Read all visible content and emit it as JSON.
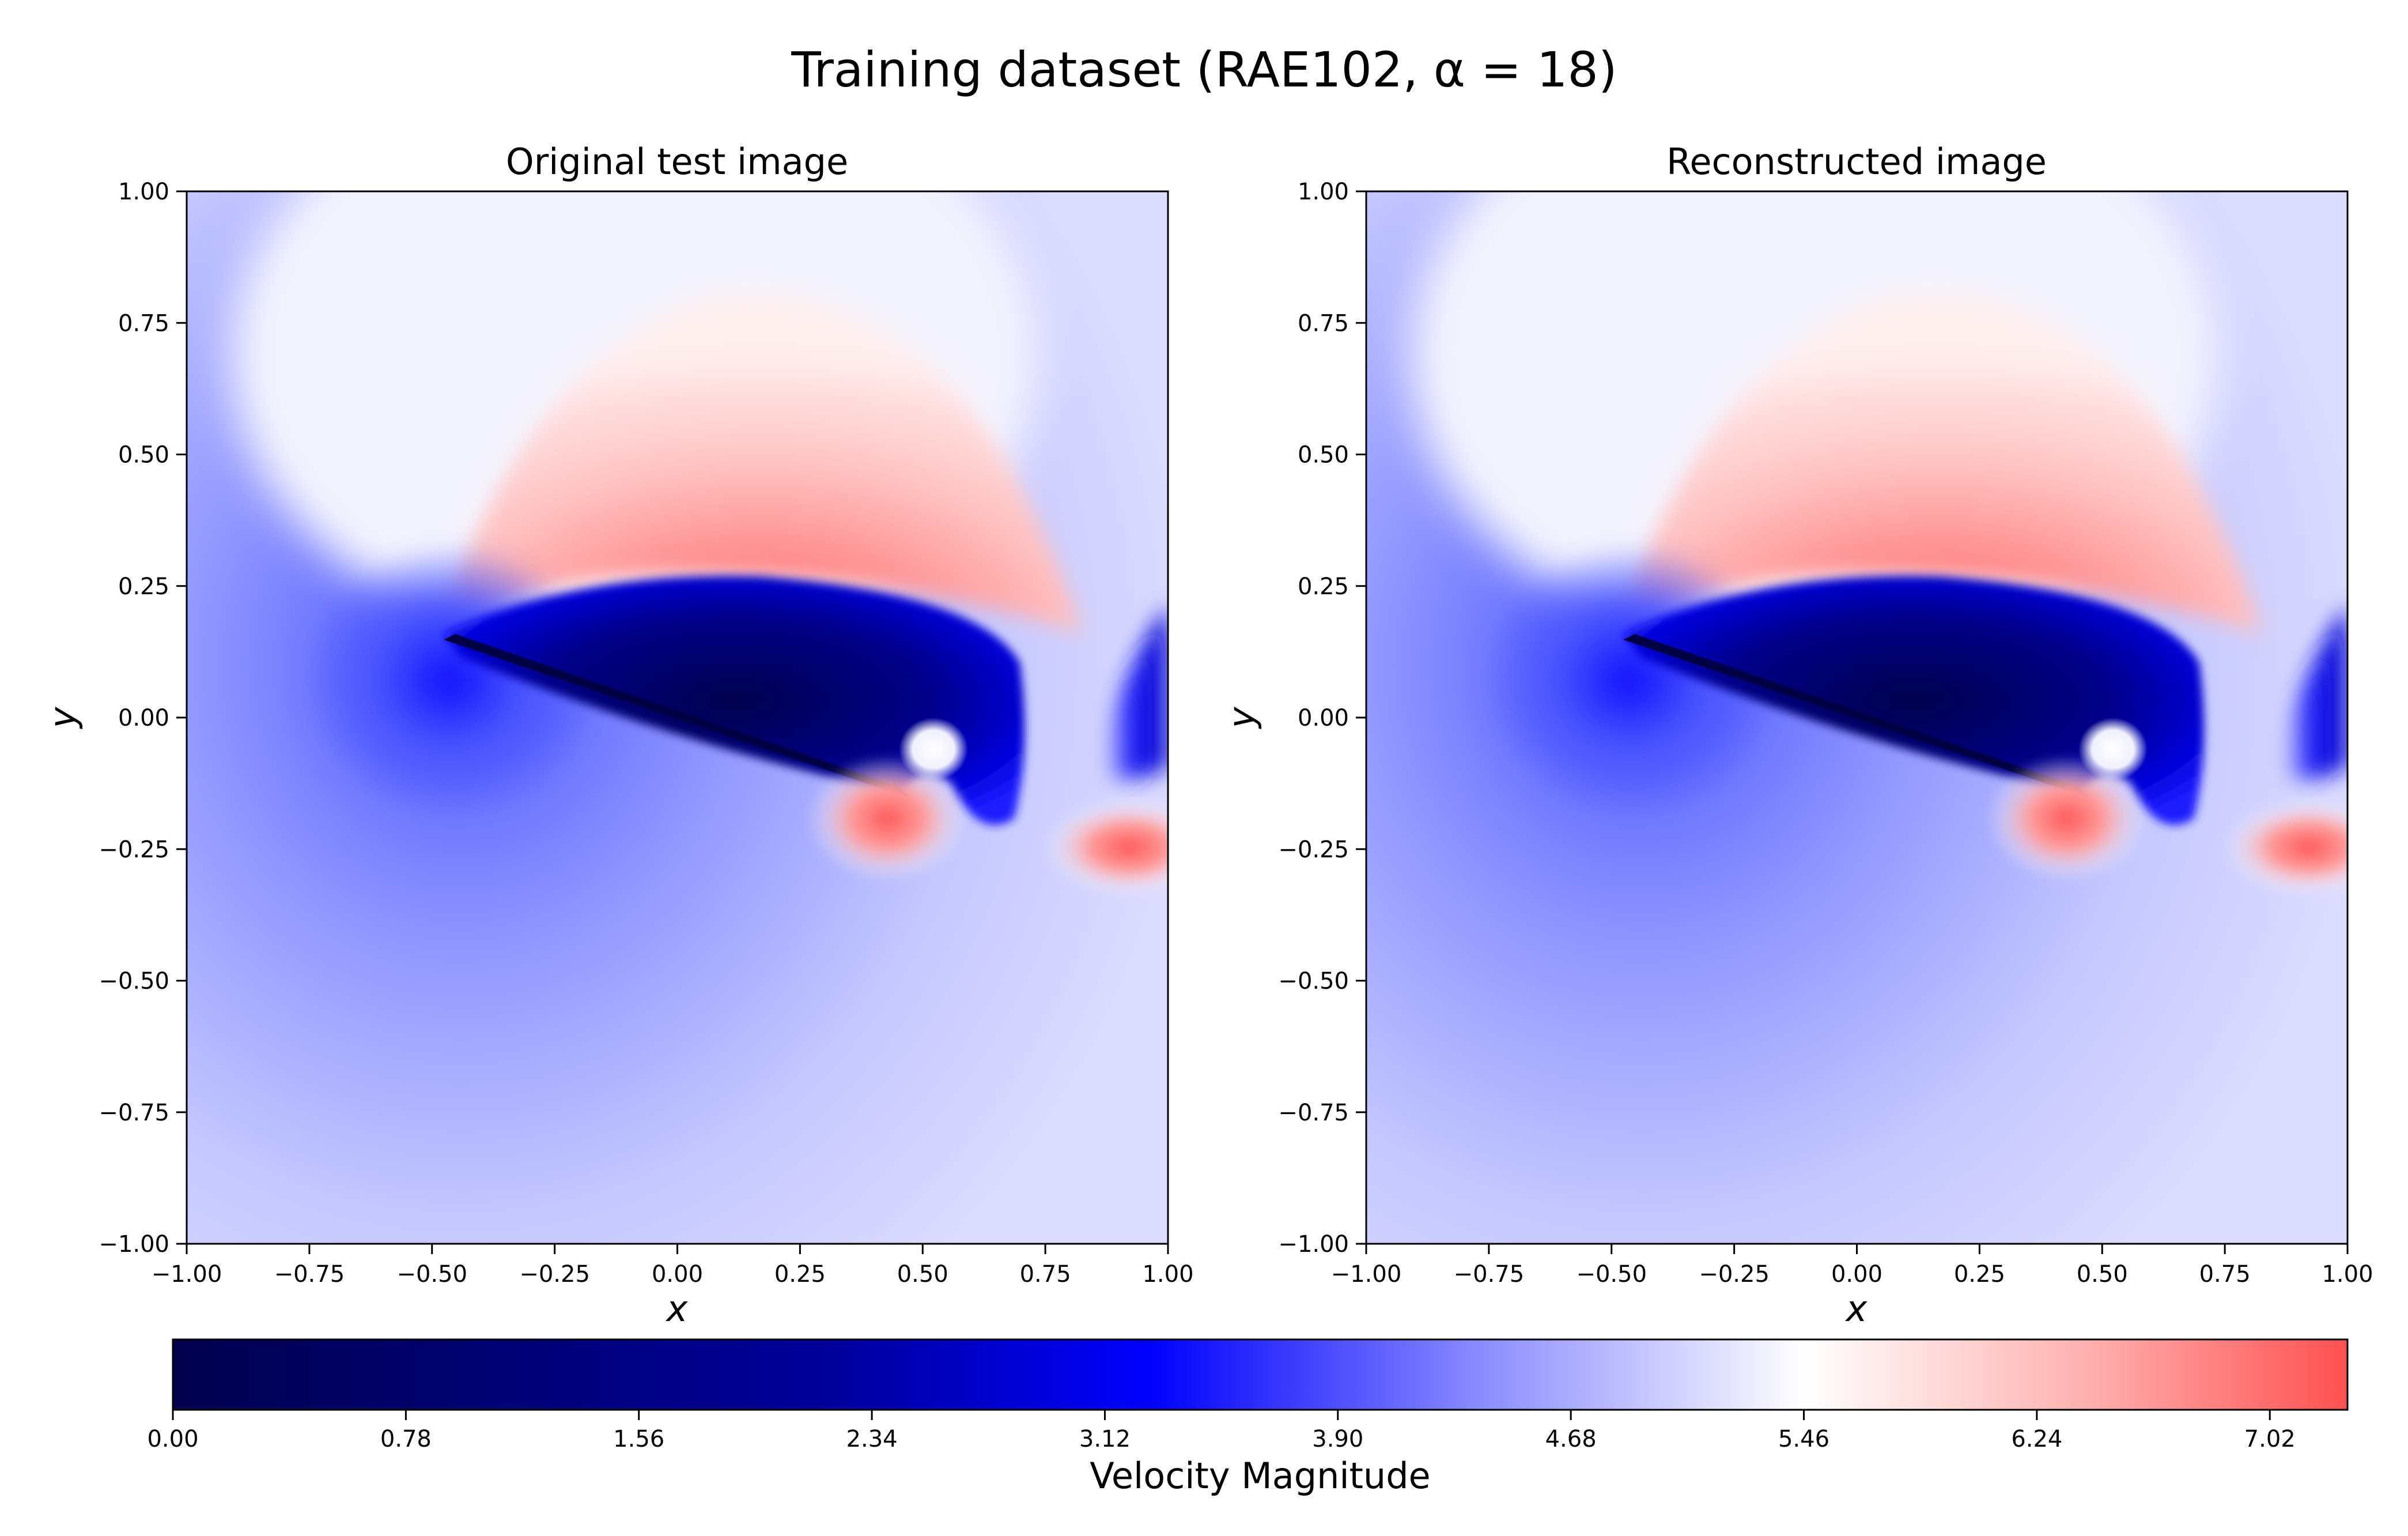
{
  "figure": {
    "title": "Training dataset (RAE102, α = 18)"
  },
  "colorbar": {
    "label": "Velocity Magnitude",
    "min": 0.0,
    "max": 7.28,
    "ticks": [
      "0.00",
      "0.78",
      "1.56",
      "2.34",
      "3.12",
      "3.90",
      "4.68",
      "5.46",
      "6.24",
      "7.02"
    ],
    "colormap": "seismic",
    "stops": [
      "#00004d",
      "#0000ff",
      "#ffffff",
      "#ff5050"
    ]
  },
  "chart_data": [
    {
      "type": "heatmap",
      "title": "Original test image",
      "xlabel": "x",
      "ylabel": "y",
      "xlim": [
        -1.0,
        1.0
      ],
      "ylim": [
        -1.0,
        1.0
      ],
      "xticks": [
        "−1.00",
        "−0.75",
        "−0.50",
        "−0.25",
        "0.00",
        "0.25",
        "0.50",
        "0.75",
        "1.00"
      ],
      "yticks": [
        "1.00",
        "0.75",
        "0.50",
        "0.25",
        "0.00",
        "−0.25",
        "−0.50",
        "−0.75",
        "−1.00"
      ],
      "field_features": {
        "leading_edge": [
          -0.47,
          0.16
        ],
        "trailing_edge": [
          0.47,
          -0.16
        ],
        "high_velocity_region_center": [
          0.1,
          0.45
        ],
        "low_velocity_core": [
          0.05,
          0.05
        ],
        "secondary_high_region": [
          0.9,
          -0.25
        ]
      }
    },
    {
      "type": "heatmap",
      "title": "Reconstructed image",
      "xlabel": "x",
      "ylabel": "y",
      "xlim": [
        -1.0,
        1.0
      ],
      "ylim": [
        -1.0,
        1.0
      ],
      "xticks": [
        "−1.00",
        "−0.75",
        "−0.50",
        "−0.25",
        "0.00",
        "0.25",
        "0.50",
        "0.75",
        "1.00"
      ],
      "yticks": [
        "1.00",
        "0.75",
        "0.50",
        "0.25",
        "0.00",
        "−0.25",
        "−0.50",
        "−0.75",
        "−1.00"
      ],
      "field_features": {
        "leading_edge": [
          -0.47,
          0.16
        ],
        "trailing_edge": [
          0.47,
          -0.16
        ],
        "high_velocity_region_center": [
          0.1,
          0.45
        ],
        "low_velocity_core": [
          0.05,
          0.05
        ],
        "secondary_high_region": [
          0.9,
          -0.25
        ]
      }
    }
  ]
}
